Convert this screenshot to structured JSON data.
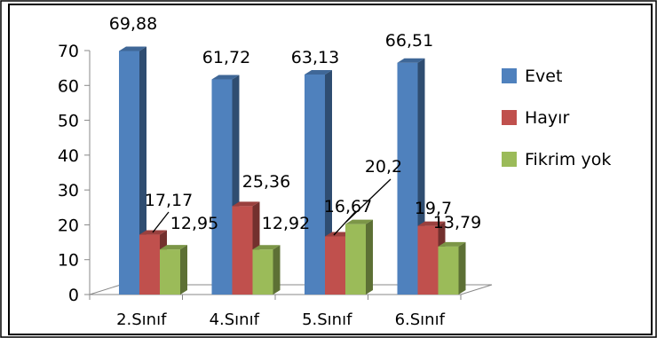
{
  "chart_data": {
    "type": "bar",
    "categories": [
      "2.Sınıf",
      "4.Sınıf",
      "5.Sınıf",
      "6.Sınıf"
    ],
    "series": [
      {
        "name": "Evet",
        "color": "#4f81bd",
        "values": [
          69.88,
          61.72,
          63.13,
          66.51
        ],
        "labels": [
          "69,88",
          "61,72",
          "63,13",
          "66,51"
        ]
      },
      {
        "name": "Hayır",
        "color": "#c0504d",
        "values": [
          17.17,
          25.36,
          16.67,
          19.7
        ],
        "labels": [
          "17,17",
          "25,36",
          "16,67",
          "19,7"
        ]
      },
      {
        "name": "Fikrim yok",
        "color": "#9bbb59",
        "values": [
          12.95,
          12.92,
          20.2,
          13.79
        ],
        "labels": [
          "12,95",
          "12,92",
          "20,2",
          "13,79"
        ]
      }
    ],
    "ylim": [
      0,
      70
    ],
    "yticks": [
      "0",
      "10",
      "20",
      "30",
      "40",
      "50",
      "60",
      "70"
    ],
    "legend_position": "right",
    "grid": false,
    "style": "3d-column"
  }
}
